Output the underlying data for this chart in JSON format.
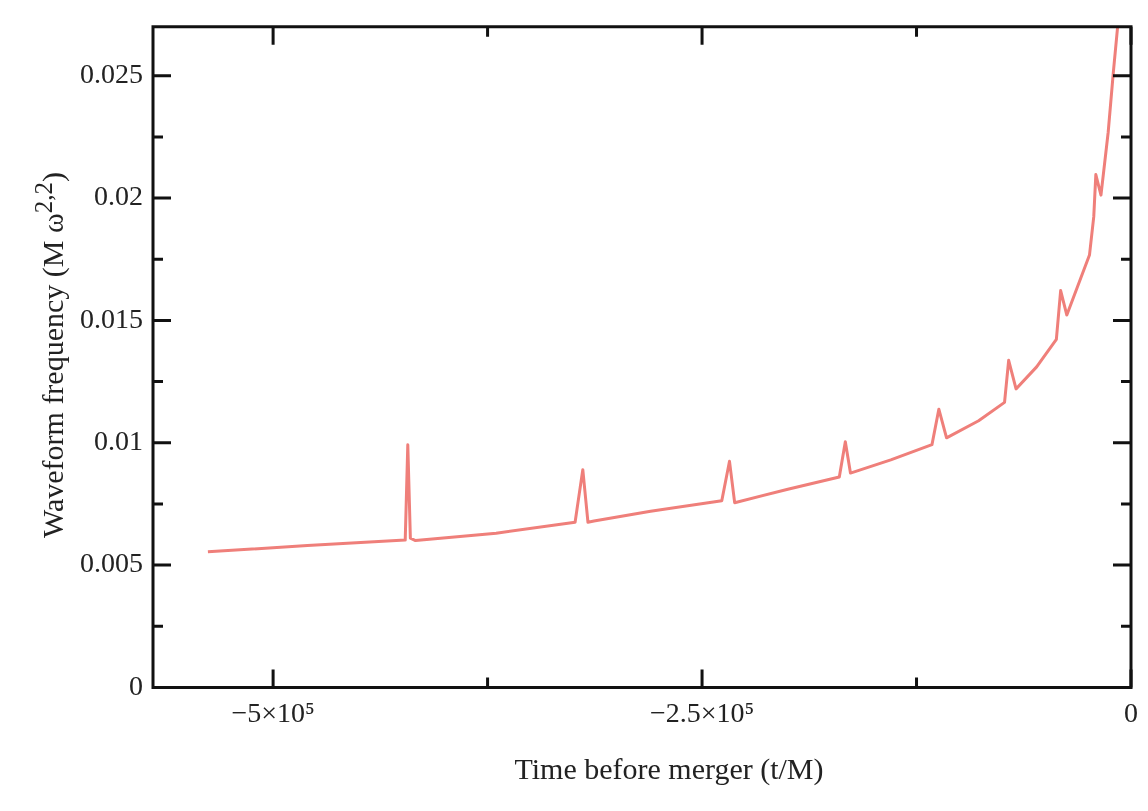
{
  "chart_data": {
    "type": "line",
    "xlabel": "Time before merger (t/M)",
    "ylabel": "Waveform frequency (M ω$^{2,2}$)",
    "xlim": [
      -570000,
      0
    ],
    "ylim": [
      0,
      0.027
    ],
    "xticks": [
      {
        "value": -500000,
        "label": "−5×10⁵"
      },
      {
        "value": -375000,
        "label": null
      },
      {
        "value": -250000,
        "label": "−2.5×10⁵"
      },
      {
        "value": -125000,
        "label": null
      },
      0
    ],
    "yticks": [
      0,
      {
        "value": 0.0025,
        "label": null
      },
      0.005,
      {
        "value": 0.0075,
        "label": null
      },
      0.01,
      {
        "value": 0.0125,
        "label": null
      },
      0.015,
      {
        "value": 0.0175,
        "label": null
      },
      0.02,
      {
        "value": 0.0225,
        "label": null
      },
      0.025
    ],
    "grid": false,
    "legend": false,
    "marker": "none",
    "line_style": "solid",
    "series": [
      {
        "color": "#ef7f7a",
        "x": [
          -538000,
          -480000,
          -423000,
          -421500,
          -420000,
          -417000,
          -370000,
          -324000,
          -319500,
          -316500,
          -313000,
          -280000,
          -238500,
          -234000,
          -231000,
          -200000,
          -170000,
          -166500,
          -163500,
          -140000,
          -116000,
          -112000,
          -107500,
          -88800,
          -73700,
          -71300,
          -67000,
          -55000,
          -43500,
          -41000,
          -37400,
          -24200,
          -21700,
          -20500,
          -17500,
          -13300,
          -10300,
          -7800
        ],
        "values": [
          0.00554,
          0.0058,
          0.00602,
          0.00992,
          0.0061,
          0.006,
          0.0063,
          0.00675,
          0.0089,
          0.00675,
          0.0068,
          0.0072,
          0.00763,
          0.00924,
          0.00755,
          0.0081,
          0.0086,
          0.01004,
          0.00876,
          0.0093,
          0.00992,
          0.01137,
          0.0102,
          0.0109,
          0.01165,
          0.01337,
          0.0122,
          0.0131,
          0.01422,
          0.01622,
          0.01522,
          0.01767,
          0.01924,
          0.02096,
          0.02012,
          0.02269,
          0.02514,
          0.027
        ]
      }
    ]
  }
}
